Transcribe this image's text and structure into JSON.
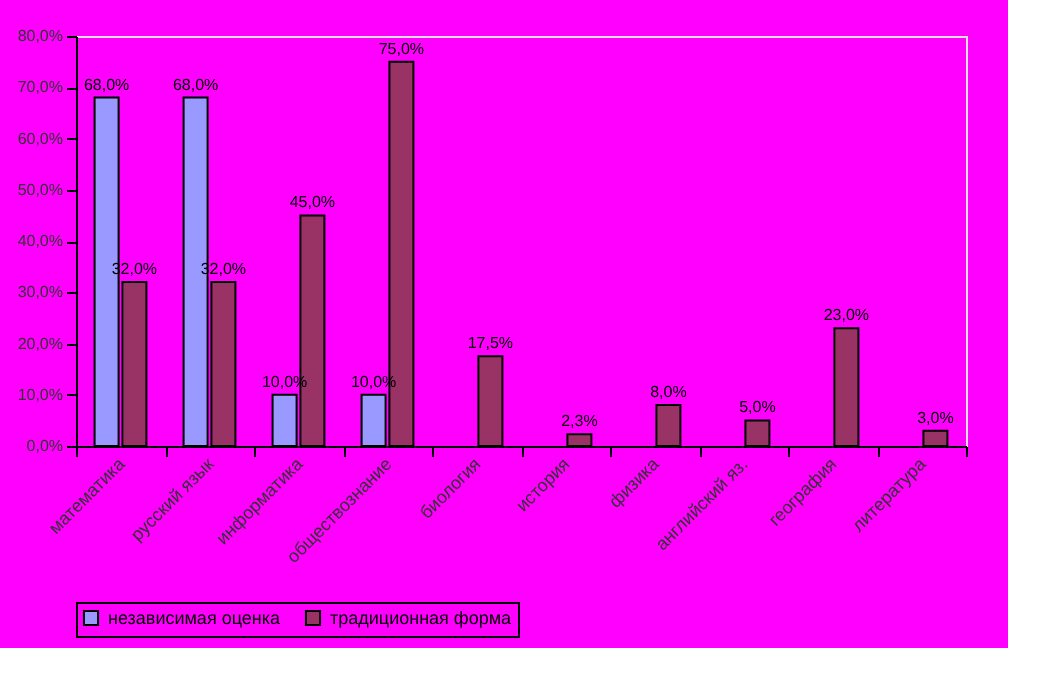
{
  "chart_data": {
    "type": "bar",
    "categories": [
      "математика",
      "русский язык",
      "информатика",
      "обществознание",
      "биология",
      "история",
      "физика",
      "английский яз.",
      "география",
      "литература"
    ],
    "series": [
      {
        "name": "независимая оценка",
        "color": "#9999ff",
        "values": [
          68,
          68,
          10,
          10,
          null,
          null,
          null,
          null,
          null,
          null
        ],
        "value_labels": [
          "68,0%",
          "68,0%",
          "10,0%",
          "10,0%",
          null,
          null,
          null,
          null,
          null,
          null
        ]
      },
      {
        "name": "традиционная форма",
        "color": "#993366",
        "values": [
          32,
          32,
          45,
          75,
          17.5,
          2.3,
          8,
          5,
          23,
          3
        ],
        "value_labels": [
          "32,0%",
          "32,0%",
          "45,0%",
          "75,0%",
          "17,5%",
          "2,3%",
          "8,0%",
          "5,0%",
          "23,0%",
          "3,0%"
        ]
      }
    ],
    "ylim": [
      0,
      80
    ],
    "yticks": [
      {
        "value": 0,
        "label": "0,0%"
      },
      {
        "value": 10,
        "label": "10,0%"
      },
      {
        "value": 20,
        "label": "20,0%"
      },
      {
        "value": 30,
        "label": "30,0%"
      },
      {
        "value": 40,
        "label": "40,0%"
      },
      {
        "value": 50,
        "label": "50,0%"
      },
      {
        "value": 60,
        "label": "60,0%"
      },
      {
        "value": 70,
        "label": "70,0%"
      },
      {
        "value": 80,
        "label": "80,0%"
      }
    ],
    "grid": false,
    "legend": "bottom"
  }
}
